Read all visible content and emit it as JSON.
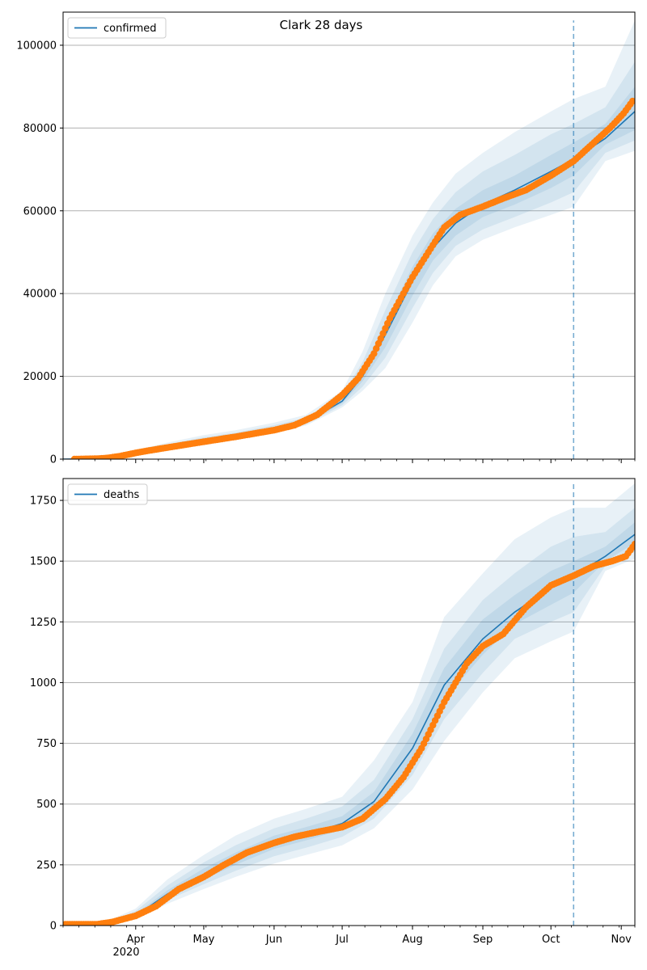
{
  "title": "Clark 28 days",
  "colors": {
    "model_line": "#1f77b4",
    "band_fill": "#1f77b4",
    "observed": "#ff7f0e",
    "grid": "#b0b0b0",
    "forecast_marker": "#1f77b4"
  },
  "x_axis": {
    "start": "2020-02-29",
    "end": "2020-11-07",
    "tick_labels": [
      {
        "date": "2020-04-01",
        "label": "Apr"
      },
      {
        "date": "2020-05-01",
        "label": "May"
      },
      {
        "date": "2020-06-01",
        "label": "Jun"
      },
      {
        "date": "2020-07-01",
        "label": "Jul"
      },
      {
        "date": "2020-08-01",
        "label": "Aug"
      },
      {
        "date": "2020-09-01",
        "label": "Sep"
      },
      {
        "date": "2020-10-01",
        "label": "Oct"
      },
      {
        "date": "2020-11-01",
        "label": "Nov"
      }
    ],
    "year_label": "2020",
    "forecast_start": "2020-10-11"
  },
  "chart_data": [
    {
      "type": "line",
      "legend": "confirmed",
      "legend_placement": "top-left",
      "ylim": [
        0,
        108000
      ],
      "yticks": [
        0,
        20000,
        40000,
        60000,
        80000,
        100000
      ],
      "grid": true,
      "model": {
        "x": [
          "2020-02-29",
          "2020-03-15",
          "2020-03-22",
          "2020-04-01",
          "2020-04-15",
          "2020-05-01",
          "2020-05-15",
          "2020-06-01",
          "2020-06-15",
          "2020-07-01",
          "2020-07-10",
          "2020-07-20",
          "2020-08-01",
          "2020-08-10",
          "2020-08-20",
          "2020-09-01",
          "2020-09-15",
          "2020-10-01",
          "2020-10-11",
          "2020-10-25",
          "2020-11-07"
        ],
        "y": [
          0,
          100,
          500,
          1500,
          3000,
          4500,
          5600,
          7200,
          8900,
          14000,
          20000,
          30000,
          43000,
          51000,
          57000,
          61500,
          65000,
          69500,
          72500,
          77500,
          84000
        ]
      },
      "bands": [
        {
          "lower": [
            0,
            80,
            300,
            900,
            2300,
            3800,
            4800,
            6500,
            8100,
            12500,
            16500,
            22000,
            33000,
            42000,
            49000,
            53000,
            56000,
            59000,
            61000,
            72000,
            74500
          ],
          "upper": [
            0,
            150,
            800,
            2200,
            4000,
            5800,
            7000,
            8800,
            10700,
            16500,
            26000,
            40000,
            54000,
            62000,
            69000,
            74000,
            79000,
            84000,
            87000,
            90000,
            106000
          ]
        },
        {
          "lower": [
            0,
            90,
            380,
            1100,
            2600,
            4100,
            5150,
            6800,
            8450,
            13000,
            17500,
            24500,
            36500,
            45000,
            51500,
            55500,
            58500,
            62000,
            64500,
            74000,
            77000
          ],
          "upper": [
            0,
            130,
            650,
            1900,
            3600,
            5300,
            6400,
            8200,
            10000,
            15500,
            23500,
            36000,
            50000,
            58000,
            64500,
            69500,
            73500,
            78500,
            81000,
            85000,
            96000
          ]
        },
        {
          "lower": [
            0,
            95,
            440,
            1300,
            2800,
            4300,
            5400,
            7000,
            8700,
            13500,
            18800,
            27000,
            39500,
            48000,
            54000,
            58500,
            61500,
            65500,
            68500,
            76000,
            79500
          ],
          "upper": [
            0,
            115,
            560,
            1700,
            3250,
            4800,
            5900,
            7500,
            9300,
            14800,
            21500,
            33000,
            46500,
            54500,
            60500,
            65000,
            68500,
            73500,
            76500,
            81000,
            90000
          ]
        }
      ],
      "observed": {
        "x": [
          "2020-03-05",
          "2020-03-15",
          "2020-03-20",
          "2020-03-25",
          "2020-04-01",
          "2020-04-05",
          "2020-04-15",
          "2020-05-01",
          "2020-05-15",
          "2020-06-01",
          "2020-06-10",
          "2020-06-20",
          "2020-07-01",
          "2020-07-08",
          "2020-07-15",
          "2020-07-22",
          "2020-08-01",
          "2020-08-08",
          "2020-08-15",
          "2020-08-22",
          "2020-09-01",
          "2020-09-10",
          "2020-09-20",
          "2020-10-01",
          "2020-10-11",
          "2020-10-20",
          "2020-10-27",
          "2020-11-02",
          "2020-11-06"
        ],
        "y": [
          0,
          100,
          300,
          700,
          1500,
          1900,
          2800,
          4200,
          5400,
          7000,
          8200,
          10700,
          15500,
          19500,
          25500,
          34000,
          44000,
          50000,
          56000,
          59000,
          61000,
          63000,
          65000,
          68500,
          72000,
          76500,
          80000,
          83500,
          86500
        ]
      },
      "forecast_marker_ylim": [
        0,
        106000
      ]
    },
    {
      "type": "line",
      "legend": "deaths",
      "legend_placement": "top-left",
      "ylim": [
        0,
        1840
      ],
      "yticks": [
        0,
        250,
        500,
        750,
        1000,
        1250,
        1500,
        1750
      ],
      "grid": true,
      "model": {
        "x": [
          "2020-02-29",
          "2020-03-20",
          "2020-04-01",
          "2020-04-15",
          "2020-05-01",
          "2020-05-15",
          "2020-06-01",
          "2020-06-15",
          "2020-07-01",
          "2020-07-15",
          "2020-08-01",
          "2020-08-15",
          "2020-09-01",
          "2020-09-15",
          "2020-10-01",
          "2020-10-11",
          "2020-10-25",
          "2020-11-07"
        ],
        "y": [
          0,
          10,
          40,
          130,
          210,
          275,
          340,
          375,
          420,
          510,
          730,
          990,
          1180,
          1290,
          1390,
          1440,
          1520,
          1610
        ]
      },
      "bands": [
        {
          "lower": [
            0,
            5,
            25,
            90,
            150,
            200,
            255,
            290,
            330,
            400,
            560,
            760,
            960,
            1100,
            1170,
            1210,
            1460,
            1510
          ],
          "upper": [
            0,
            20,
            70,
            190,
            290,
            370,
            440,
            480,
            530,
            680,
            920,
            1270,
            1450,
            1590,
            1680,
            1720,
            1720,
            1820
          ]
        },
        {
          "lower": [
            0,
            7,
            30,
            105,
            170,
            225,
            285,
            320,
            365,
            440,
            620,
            850,
            1040,
            1180,
            1250,
            1290,
            1480,
            1540
          ],
          "upper": [
            0,
            16,
            60,
            165,
            260,
            330,
            400,
            440,
            490,
            600,
            850,
            1140,
            1340,
            1450,
            1560,
            1600,
            1620,
            1720
          ]
        },
        {
          "lower": [
            0,
            9,
            36,
            118,
            190,
            250,
            315,
            350,
            395,
            480,
            680,
            930,
            1115,
            1240,
            1320,
            1370,
            1500,
            1575
          ],
          "upper": [
            0,
            12,
            48,
            145,
            235,
            300,
            370,
            405,
            450,
            550,
            790,
            1060,
            1260,
            1360,
            1460,
            1500,
            1560,
            1660
          ]
        }
      ],
      "observed": {
        "x": [
          "2020-03-01",
          "2020-03-15",
          "2020-03-22",
          "2020-04-01",
          "2020-04-10",
          "2020-04-20",
          "2020-05-01",
          "2020-05-10",
          "2020-05-20",
          "2020-06-01",
          "2020-06-10",
          "2020-06-20",
          "2020-07-01",
          "2020-07-10",
          "2020-07-20",
          "2020-07-28",
          "2020-08-05",
          "2020-08-15",
          "2020-08-25",
          "2020-09-01",
          "2020-09-10",
          "2020-09-20",
          "2020-10-01",
          "2020-10-11",
          "2020-10-20",
          "2020-10-28",
          "2020-11-03",
          "2020-11-07"
        ],
        "y": [
          5,
          5,
          15,
          40,
          80,
          150,
          200,
          250,
          300,
          340,
          365,
          385,
          405,
          440,
          520,
          610,
          730,
          920,
          1080,
          1150,
          1200,
          1310,
          1400,
          1440,
          1480,
          1500,
          1520,
          1570
        ]
      },
      "forecast_marker_ylim": [
        0,
        1820
      ]
    }
  ]
}
